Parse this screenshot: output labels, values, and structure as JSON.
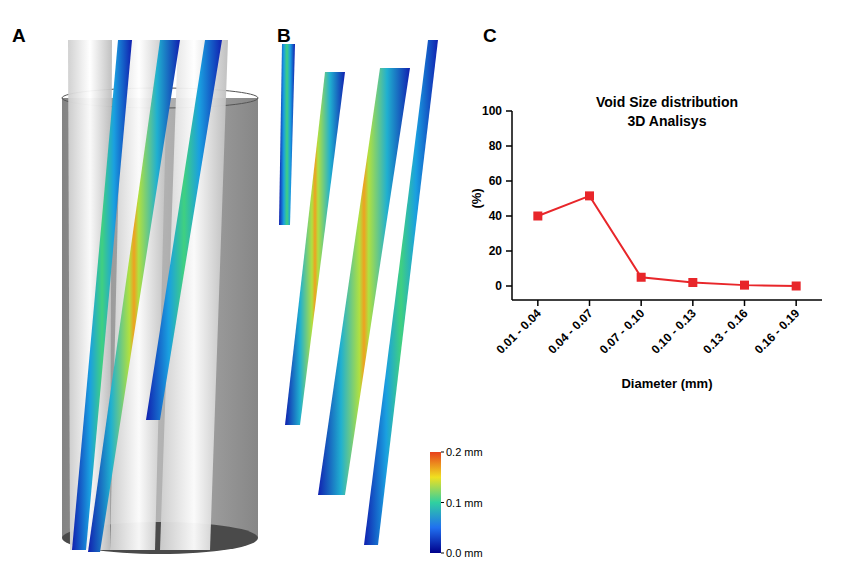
{
  "panels": [
    "A",
    "B",
    "C"
  ],
  "colorbar": {
    "range": [
      0,
      0.2
    ],
    "ticks": [
      {
        "value": 0.2,
        "label": "0.2 mm"
      },
      {
        "value": 0.1,
        "label": "0.1 mm"
      },
      {
        "value": 0.0,
        "label": "0.0 mm"
      }
    ]
  },
  "chart_data": {
    "type": "line",
    "title": "Void Size distribution",
    "subtitle": "3D Analisys",
    "x_label": "Diameter (mm)",
    "y_label": "(%)",
    "categories": [
      "0.01 - 0.04",
      "0.04 - 0.07",
      "0.07 - 0.10",
      "0.10 - 0.13",
      "0.13 - 0.16",
      "0.16 - 0.19"
    ],
    "values": [
      40,
      51.5,
      5,
      2,
      0.5,
      0
    ],
    "color": "#e8262a",
    "marker": "square",
    "line_style": "solid",
    "ylim": [
      0,
      100
    ],
    "yticks": [
      0,
      20,
      40,
      60,
      80,
      100
    ],
    "grid": false
  }
}
